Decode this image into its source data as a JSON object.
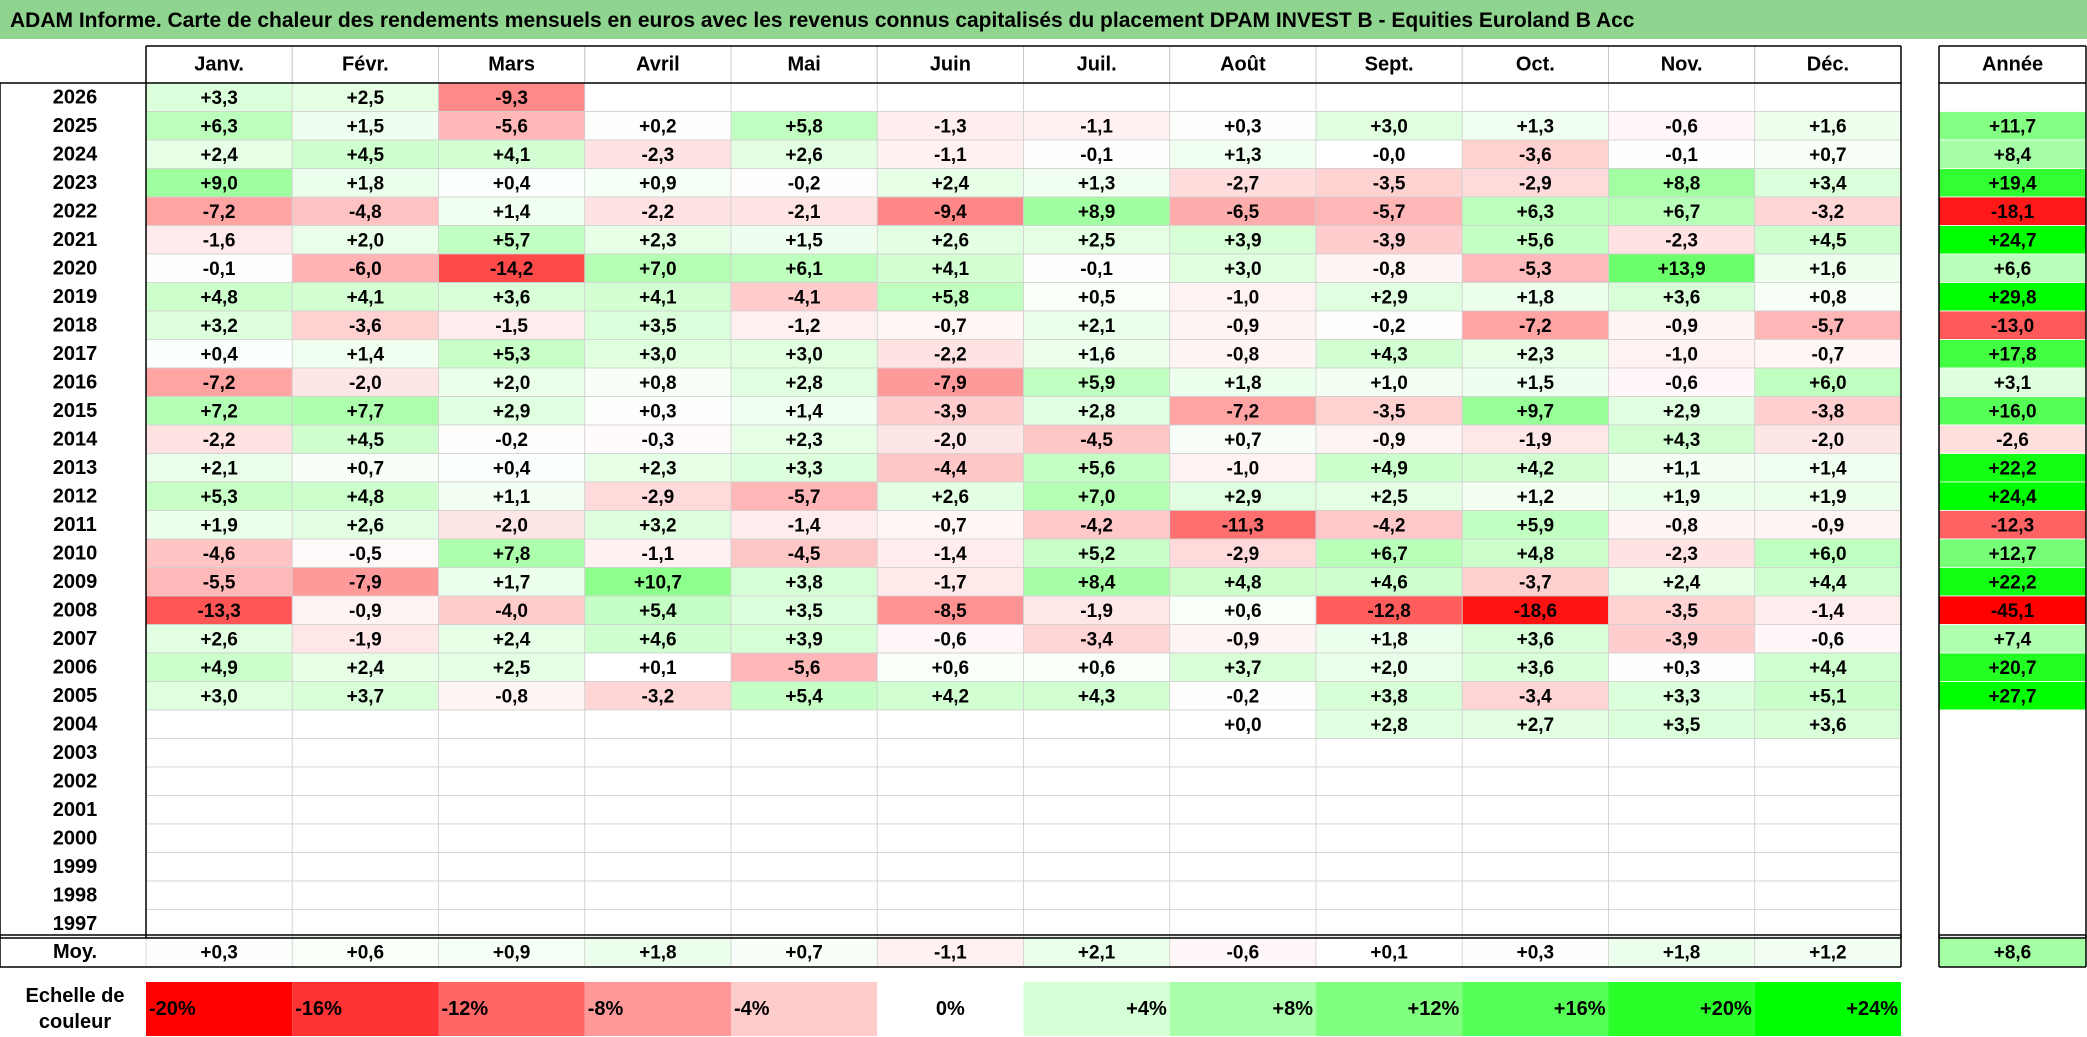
{
  "title": "ADAM Informe. Carte de chaleur des rendements mensuels en euros avec les revenus connus capitalisés du placement DPAM INVEST B - Equities Euroland B Acc",
  "chart_data": {
    "type": "heatmap",
    "months": [
      "Janv.",
      "Févr.",
      "Mars",
      "Avril",
      "Mai",
      "Juin",
      "Juil.",
      "Août",
      "Sept.",
      "Oct.",
      "Nov.",
      "Déc."
    ],
    "year_header": "Année",
    "avg_label": "Moy.",
    "rows": [
      {
        "year": "2026",
        "values": [
          "+3,3",
          "+2,5",
          "-9,3",
          "",
          "",
          "",
          "",
          "",
          "",
          "",
          "",
          ""
        ],
        "annual": ""
      },
      {
        "year": "2025",
        "values": [
          "+6,3",
          "+1,5",
          "-5,6",
          "+0,2",
          "+5,8",
          "-1,3",
          "-1,1",
          "+0,3",
          "+3,0",
          "+1,3",
          "-0,6",
          "+1,6"
        ],
        "annual": "+11,7"
      },
      {
        "year": "2024",
        "values": [
          "+2,4",
          "+4,5",
          "+4,1",
          "-2,3",
          "+2,6",
          "-1,1",
          "-0,1",
          "+1,3",
          "-0,0",
          "-3,6",
          "-0,1",
          "+0,7"
        ],
        "annual": "+8,4"
      },
      {
        "year": "2023",
        "values": [
          "+9,0",
          "+1,8",
          "+0,4",
          "+0,9",
          "-0,2",
          "+2,4",
          "+1,3",
          "-2,7",
          "-3,5",
          "-2,9",
          "+8,8",
          "+3,4"
        ],
        "annual": "+19,4"
      },
      {
        "year": "2022",
        "values": [
          "-7,2",
          "-4,8",
          "+1,4",
          "-2,2",
          "-2,1",
          "-9,4",
          "+8,9",
          "-6,5",
          "-5,7",
          "+6,3",
          "+6,7",
          "-3,2"
        ],
        "annual": "-18,1"
      },
      {
        "year": "2021",
        "values": [
          "-1,6",
          "+2,0",
          "+5,7",
          "+2,3",
          "+1,5",
          "+2,6",
          "+2,5",
          "+3,9",
          "-3,9",
          "+5,6",
          "-2,3",
          "+4,5"
        ],
        "annual": "+24,7"
      },
      {
        "year": "2020",
        "values": [
          "-0,1",
          "-6,0",
          "-14,2",
          "+7,0",
          "+6,1",
          "+4,1",
          "-0,1",
          "+3,0",
          "-0,8",
          "-5,3",
          "+13,9",
          "+1,6"
        ],
        "annual": "+6,6"
      },
      {
        "year": "2019",
        "values": [
          "+4,8",
          "+4,1",
          "+3,6",
          "+4,1",
          "-4,1",
          "+5,8",
          "+0,5",
          "-1,0",
          "+2,9",
          "+1,8",
          "+3,6",
          "+0,8"
        ],
        "annual": "+29,8"
      },
      {
        "year": "2018",
        "values": [
          "+3,2",
          "-3,6",
          "-1,5",
          "+3,5",
          "-1,2",
          "-0,7",
          "+2,1",
          "-0,9",
          "-0,2",
          "-7,2",
          "-0,9",
          "-5,7"
        ],
        "annual": "-13,0"
      },
      {
        "year": "2017",
        "values": [
          "+0,4",
          "+1,4",
          "+5,3",
          "+3,0",
          "+3,0",
          "-2,2",
          "+1,6",
          "-0,8",
          "+4,3",
          "+2,3",
          "-1,0",
          "-0,7"
        ],
        "annual": "+17,8"
      },
      {
        "year": "2016",
        "values": [
          "-7,2",
          "-2,0",
          "+2,0",
          "+0,8",
          "+2,8",
          "-7,9",
          "+5,9",
          "+1,8",
          "+1,0",
          "+1,5",
          "-0,6",
          "+6,0"
        ],
        "annual": "+3,1"
      },
      {
        "year": "2015",
        "values": [
          "+7,2",
          "+7,7",
          "+2,9",
          "+0,3",
          "+1,4",
          "-3,9",
          "+2,8",
          "-7,2",
          "-3,5",
          "+9,7",
          "+2,9",
          "-3,8"
        ],
        "annual": "+16,0"
      },
      {
        "year": "2014",
        "values": [
          "-2,2",
          "+4,5",
          "-0,2",
          "-0,3",
          "+2,3",
          "-2,0",
          "-4,5",
          "+0,7",
          "-0,9",
          "-1,9",
          "+4,3",
          "-2,0"
        ],
        "annual": "-2,6"
      },
      {
        "year": "2013",
        "values": [
          "+2,1",
          "+0,7",
          "+0,4",
          "+2,3",
          "+3,3",
          "-4,4",
          "+5,6",
          "-1,0",
          "+4,9",
          "+4,2",
          "+1,1",
          "+1,4"
        ],
        "annual": "+22,2"
      },
      {
        "year": "2012",
        "values": [
          "+5,3",
          "+4,8",
          "+1,1",
          "-2,9",
          "-5,7",
          "+2,6",
          "+7,0",
          "+2,9",
          "+2,5",
          "+1,2",
          "+1,9",
          "+1,9"
        ],
        "annual": "+24,4"
      },
      {
        "year": "2011",
        "values": [
          "+1,9",
          "+2,6",
          "-2,0",
          "+3,2",
          "-1,4",
          "-0,7",
          "-4,2",
          "-11,3",
          "-4,2",
          "+5,9",
          "-0,8",
          "-0,9"
        ],
        "annual": "-12,3"
      },
      {
        "year": "2010",
        "values": [
          "-4,6",
          "-0,5",
          "+7,8",
          "-1,1",
          "-4,5",
          "-1,4",
          "+5,2",
          "-2,9",
          "+6,7",
          "+4,8",
          "-2,3",
          "+6,0"
        ],
        "annual": "+12,7"
      },
      {
        "year": "2009",
        "values": [
          "-5,5",
          "-7,9",
          "+1,7",
          "+10,7",
          "+3,8",
          "-1,7",
          "+8,4",
          "+4,8",
          "+4,6",
          "-3,7",
          "+2,4",
          "+4,4"
        ],
        "annual": "+22,2"
      },
      {
        "year": "2008",
        "values": [
          "-13,3",
          "-0,9",
          "-4,0",
          "+5,4",
          "+3,5",
          "-8,5",
          "-1,9",
          "+0,6",
          "-12,8",
          "-18,6",
          "-3,5",
          "-1,4"
        ],
        "annual": "-45,1"
      },
      {
        "year": "2007",
        "values": [
          "+2,6",
          "-1,9",
          "+2,4",
          "+4,6",
          "+3,9",
          "-0,6",
          "-3,4",
          "-0,9",
          "+1,8",
          "+3,6",
          "-3,9",
          "-0,6"
        ],
        "annual": "+7,4"
      },
      {
        "year": "2006",
        "values": [
          "+4,9",
          "+2,4",
          "+2,5",
          "+0,1",
          "-5,6",
          "+0,6",
          "+0,6",
          "+3,7",
          "+2,0",
          "+3,6",
          "+0,3",
          "+4,4"
        ],
        "annual": "+20,7"
      },
      {
        "year": "2005",
        "values": [
          "+3,0",
          "+3,7",
          "-0,8",
          "-3,2",
          "+5,4",
          "+4,2",
          "+4,3",
          "-0,2",
          "+3,8",
          "-3,4",
          "+3,3",
          "+5,1"
        ],
        "annual": "+27,7"
      },
      {
        "year": "2004",
        "values": [
          "",
          "",
          "",
          "",
          "",
          "",
          "",
          "+0,0",
          "+2,8",
          "+2,7",
          "+3,5",
          "+3,6"
        ],
        "annual": ""
      },
      {
        "year": "2003",
        "values": [
          "",
          "",
          "",
          "",
          "",
          "",
          "",
          "",
          "",
          "",
          "",
          ""
        ],
        "annual": ""
      },
      {
        "year": "2002",
        "values": [
          "",
          "",
          "",
          "",
          "",
          "",
          "",
          "",
          "",
          "",
          "",
          ""
        ],
        "annual": ""
      },
      {
        "year": "2001",
        "values": [
          "",
          "",
          "",
          "",
          "",
          "",
          "",
          "",
          "",
          "",
          "",
          ""
        ],
        "annual": ""
      },
      {
        "year": "2000",
        "values": [
          "",
          "",
          "",
          "",
          "",
          "",
          "",
          "",
          "",
          "",
          "",
          ""
        ],
        "annual": ""
      },
      {
        "year": "1999",
        "values": [
          "",
          "",
          "",
          "",
          "",
          "",
          "",
          "",
          "",
          "",
          "",
          ""
        ],
        "annual": ""
      },
      {
        "year": "1998",
        "values": [
          "",
          "",
          "",
          "",
          "",
          "",
          "",
          "",
          "",
          "",
          "",
          ""
        ],
        "annual": ""
      },
      {
        "year": "1997",
        "values": [
          "",
          "",
          "",
          "",
          "",
          "",
          "",
          "",
          "",
          "",
          "",
          ""
        ],
        "annual": ""
      }
    ],
    "average": {
      "values": [
        "+0,3",
        "+0,6",
        "+0,9",
        "+1,8",
        "+0,7",
        "-1,1",
        "+2,1",
        "-0,6",
        "+0,1",
        "+0,3",
        "+1,8",
        "+1,2"
      ],
      "annual": "+8,6"
    },
    "scale": {
      "label_line1": "Echelle de",
      "label_line2": "couleur",
      "ticks": [
        "-20%",
        "-16%",
        "-12%",
        "-8%",
        "-4%",
        "0%",
        "+4%",
        "+8%",
        "+12%",
        "+16%",
        "+20%",
        "+24%"
      ]
    },
    "colors": {
      "negative_max": "#ff0000",
      "neutral": "#ffffff",
      "positive_max": "#00ff00",
      "title_bg": "#8fd48f"
    }
  }
}
